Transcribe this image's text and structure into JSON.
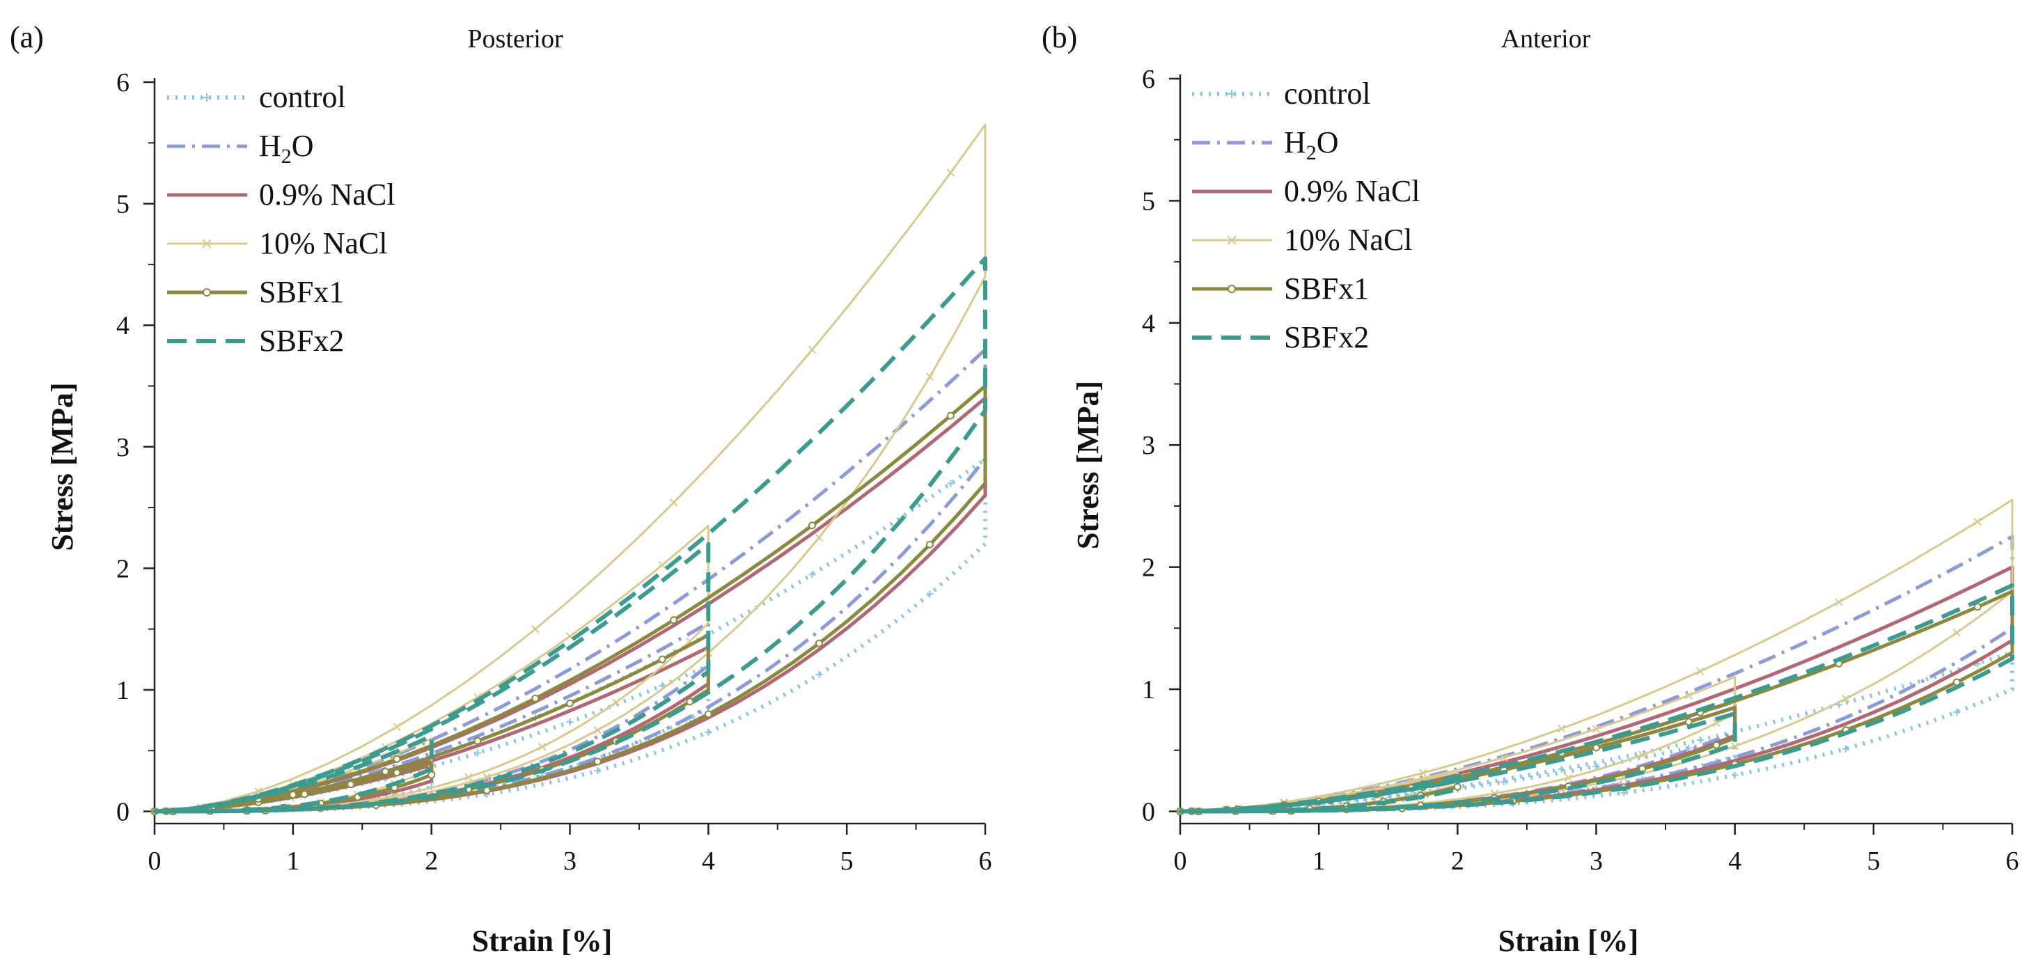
{
  "colors": {
    "control": "#8ec5de",
    "h2o": "#8e9ad6",
    "nacl09": "#b06874",
    "nacl10": "#d8ca8e",
    "sbfx1": "#8c8840",
    "sbfx2": "#3c9a8e"
  },
  "chart_data": [
    {
      "type": "line",
      "panel": "(a)",
      "title": "Posterior",
      "xlabel": "Strain [%]",
      "ylabel": "Stress [MPa]",
      "xlim": [
        0,
        6
      ],
      "ylim": [
        -0.1,
        6
      ],
      "xticks": [
        "0",
        "1",
        "2",
        "3",
        "4",
        "5",
        "6"
      ],
      "yticks": [
        "0",
        "1",
        "2",
        "3",
        "4",
        "5",
        "6"
      ],
      "legend": {
        "position": "top-left",
        "entries": [
          {
            "key": "control",
            "label": "control"
          },
          {
            "key": "h2o",
            "label": "H",
            "sub": "2",
            "suffix": "O"
          },
          {
            "key": "nacl09",
            "label": "0.9% NaCl"
          },
          {
            "key": "nacl10",
            "label": "10% NaCl"
          },
          {
            "key": "sbfx1",
            "label": "SBFx1"
          },
          {
            "key": "sbfx2",
            "label": "SBFx2"
          }
        ]
      },
      "series": [
        {
          "key": "control",
          "style": "dotted",
          "marker": "plus",
          "loading_peak": [
            0.4,
            1.2,
            2.9
          ],
          "unloading_min": [
            0.2,
            0.85,
            2.2
          ]
        },
        {
          "key": "h2o",
          "style": "dashdot",
          "marker": "none",
          "loading_peak": [
            0.45,
            1.55,
            3.8
          ],
          "unloading_min": [
            0.3,
            1.2,
            2.9
          ]
        },
        {
          "key": "nacl09",
          "style": "solid",
          "marker": "none",
          "loading_peak": [
            0.38,
            1.35,
            3.4
          ],
          "unloading_min": [
            0.25,
            1.05,
            2.6
          ]
        },
        {
          "key": "nacl10",
          "style": "solid-thin",
          "marker": "x",
          "loading_peak": [
            0.6,
            2.35,
            5.65
          ],
          "unloading_min": [
            0.35,
            1.55,
            4.4
          ]
        },
        {
          "key": "sbfx1",
          "style": "solid",
          "marker": "circle",
          "loading_peak": [
            0.4,
            1.45,
            3.5
          ],
          "unloading_min": [
            0.3,
            1.0,
            2.7
          ]
        },
        {
          "key": "sbfx2",
          "style": "dashed",
          "marker": "none",
          "loading_peak": [
            0.62,
            2.2,
            4.55
          ],
          "unloading_min": [
            0.35,
            1.15,
            3.3
          ]
        }
      ]
    },
    {
      "type": "line",
      "panel": "(b)",
      "title": "Anterior",
      "xlabel": "Strain [%]",
      "ylabel": "Stress [MPa]",
      "xlim": [
        0,
        6
      ],
      "ylim": [
        -0.1,
        6
      ],
      "xticks": [
        "0",
        "1",
        "2",
        "3",
        "4",
        "5",
        "6"
      ],
      "yticks": [
        "0",
        "1",
        "2",
        "3",
        "4",
        "5",
        "6"
      ],
      "legend": {
        "position": "top-left",
        "entries": [
          {
            "key": "control",
            "label": "control"
          },
          {
            "key": "h2o",
            "label": "H",
            "sub": "2",
            "suffix": "O"
          },
          {
            "key": "nacl09",
            "label": "0.9% NaCl"
          },
          {
            "key": "nacl10",
            "label": "10% NaCl"
          },
          {
            "key": "sbfx1",
            "label": "SBFx1"
          },
          {
            "key": "sbfx2",
            "label": "SBFx2"
          }
        ]
      },
      "series": [
        {
          "key": "control",
          "style": "dotted",
          "marker": "plus",
          "loading_peak": [
            0.25,
            0.6,
            1.3
          ],
          "unloading_min": [
            0.18,
            0.45,
            1.0
          ]
        },
        {
          "key": "h2o",
          "style": "dashdot",
          "marker": "none",
          "loading_peak": [
            0.28,
            0.9,
            2.25
          ],
          "unloading_min": [
            0.2,
            0.65,
            1.5
          ]
        },
        {
          "key": "nacl09",
          "style": "solid",
          "marker": "none",
          "loading_peak": [
            0.27,
            0.85,
            2.0
          ],
          "unloading_min": [
            0.2,
            0.62,
            1.4
          ]
        },
        {
          "key": "nacl10",
          "style": "solid-thin",
          "marker": "x",
          "loading_peak": [
            0.32,
            1.1,
            2.55
          ],
          "unloading_min": [
            0.22,
            0.8,
            1.8
          ]
        },
        {
          "key": "sbfx1",
          "style": "solid",
          "marker": "circle",
          "loading_peak": [
            0.25,
            0.85,
            1.8
          ],
          "unloading_min": [
            0.2,
            0.6,
            1.3
          ]
        },
        {
          "key": "sbfx2",
          "style": "dashed",
          "marker": "none",
          "loading_peak": [
            0.25,
            0.8,
            1.85
          ],
          "unloading_min": [
            0.18,
            0.55,
            1.25
          ]
        }
      ]
    }
  ]
}
